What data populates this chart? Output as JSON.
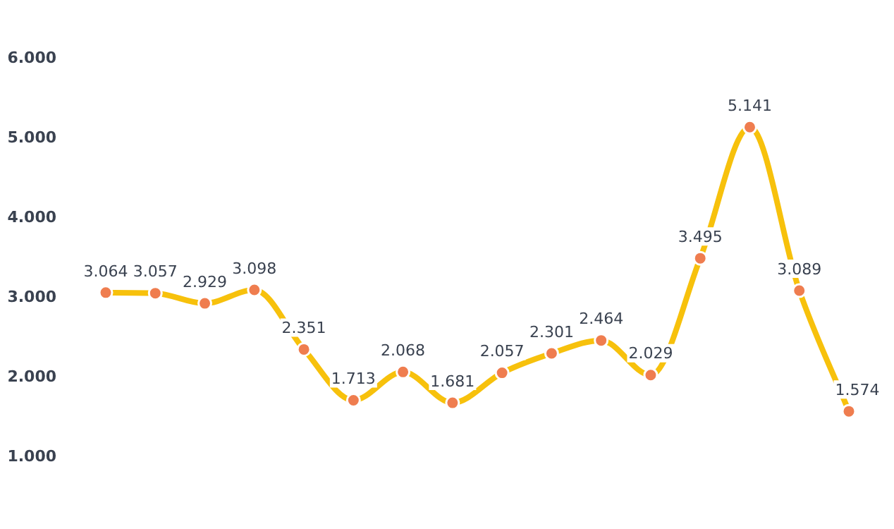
{
  "chart_data": {
    "type": "line",
    "categories": [
      null,
      null,
      null,
      null,
      null,
      null,
      null,
      null,
      null,
      null,
      null,
      null,
      null,
      null,
      null,
      null
    ],
    "series": [
      {
        "color": "#f7c10c",
        "values": [
          3.064,
          3.057,
          2.929,
          3.098,
          2.351,
          1.713,
          2.068,
          1.681,
          2.057,
          2.301,
          2.464,
          2.029,
          3.495,
          5.141,
          3.089,
          1.574
        ]
      }
    ],
    "ylim": [
      1,
      6
    ],
    "yticks": [
      {
        "value": 1,
        "label": "1.000"
      },
      {
        "value": 2,
        "label": "2.000"
      },
      {
        "value": 3,
        "label": "3.000"
      },
      {
        "value": 4,
        "label": "4.000"
      },
      {
        "value": 5,
        "label": "5.000"
      },
      {
        "value": 6,
        "label": "6.000"
      }
    ],
    "data_labels": true,
    "grid": false,
    "legend": false,
    "marker": "circle",
    "line_style": "solid"
  }
}
